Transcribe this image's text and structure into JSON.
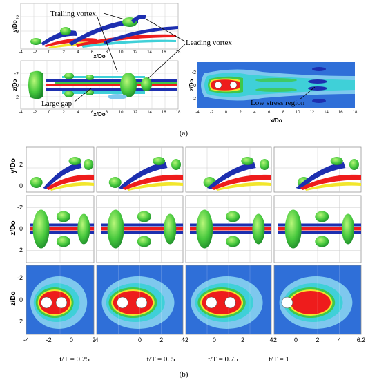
{
  "panel_a": {
    "label": "(a)",
    "xlabel": "x/Do",
    "ylabel_top": "y/Do",
    "ylabel_mid": "z/Do",
    "ylabel_right": "z/Do",
    "xlabel_right": "x/Do",
    "annotations": {
      "trailing": "Trailing vortex",
      "leading": "Leading vortex",
      "gap": "Large gap",
      "low_stress": "Low stress region"
    },
    "ticks_x_top": [
      "-4",
      "-2",
      "0",
      "2",
      "4",
      "6",
      "8",
      "10",
      "12",
      "14",
      "16",
      "18"
    ],
    "ticks_x_right": [
      "-4",
      "-2",
      "0",
      "2",
      "4",
      "6",
      "8",
      "10",
      "12",
      "14",
      "16",
      "18"
    ],
    "ticks_y_top": [
      "2",
      "0"
    ],
    "ticks_y_mid": [
      "-2",
      "0",
      "2"
    ],
    "ticks_y_right": [
      "-2",
      "0",
      "2"
    ]
  },
  "panel_b": {
    "label": "(b)",
    "ylabel_top": "y/Do",
    "ylabel_mid": "z/Do",
    "ylabel_bot": "z/Do",
    "ticks_y_top": [
      "2",
      "0"
    ],
    "ticks_y_mid": [
      "-2",
      "0",
      "2"
    ],
    "ticks_y_bot": [
      "-2",
      "0",
      "2"
    ],
    "ticks_x_1": [
      "-4",
      "-2",
      "0",
      "2"
    ],
    "ticks_x_2": [
      "4",
      "",
      "0",
      "2",
      "4"
    ],
    "ticks_x_3": [
      "-2",
      "0",
      "2",
      "4"
    ],
    "ticks_x_4": [
      "-2",
      "0",
      "2",
      "4",
      "6.2"
    ],
    "captions": [
      "t/T = 0.25",
      "t/T = 0. 5",
      "t/T = 0.75",
      "t/T = 1"
    ]
  },
  "colors": {
    "blue_bg": "#2f6fd8",
    "light_blue": "#7ec8ee",
    "cyan": "#3fd0d8",
    "green": "#3ec84a",
    "yellow": "#f2e62c",
    "red": "#ee1c1c",
    "dark_blue": "#1d2fb0"
  }
}
